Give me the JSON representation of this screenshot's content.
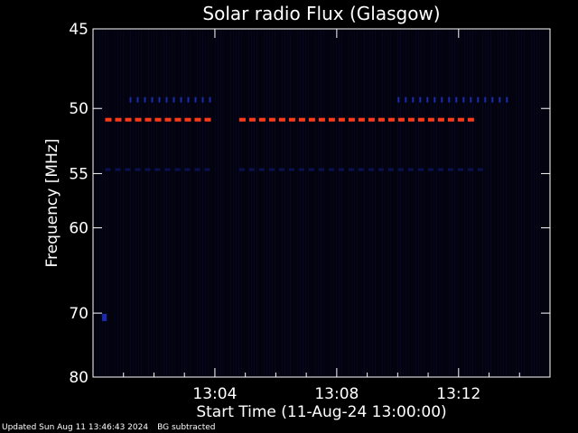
{
  "chart_data": {
    "type": "heatmap",
    "title": "Solar radio Flux (Glasgow)",
    "xlabel": "Start Time (11-Aug-24 13:00:00)",
    "ylabel": "Frequency [MHz]",
    "x_ticks": [
      "13:04",
      "13:08",
      "13:12"
    ],
    "y_ticks": [
      45,
      50,
      55,
      60,
      70,
      80
    ],
    "x_range_minutes": [
      0,
      15
    ],
    "ylim": [
      80,
      45
    ],
    "y_scale": "reciprocal",
    "colors": {
      "background": "#000000",
      "plot_background": "#03030f",
      "axes": "#ffffff",
      "rfi_strong": "#ff3a1a",
      "rfi_medium": "#1a2bb0",
      "rfi_weak": "#0b1150"
    },
    "features": [
      {
        "label": "interference band",
        "frequency_mhz": 50.8,
        "intensity": "strong",
        "time_ranges_min": [
          [
            0.4,
            4.0
          ],
          [
            4.8,
            12.5
          ]
        ]
      },
      {
        "label": "interference band",
        "frequency_mhz": 49.4,
        "intensity": "medium",
        "time_ranges_min": [
          [
            1.2,
            4.0
          ],
          [
            10.0,
            13.8
          ]
        ]
      },
      {
        "label": "interference band",
        "frequency_mhz": 54.7,
        "intensity": "weak",
        "time_ranges_min": [
          [
            0.4,
            4.0
          ],
          [
            4.8,
            13.0
          ]
        ]
      },
      {
        "label": "spike",
        "frequency_mhz": 70.6,
        "intensity": "medium",
        "time_ranges_min": [
          [
            0.3,
            0.45
          ]
        ]
      }
    ]
  },
  "footer": {
    "updated": "Updated Sun Aug 11 13:46:43 2024",
    "note": "BG subtracted"
  }
}
